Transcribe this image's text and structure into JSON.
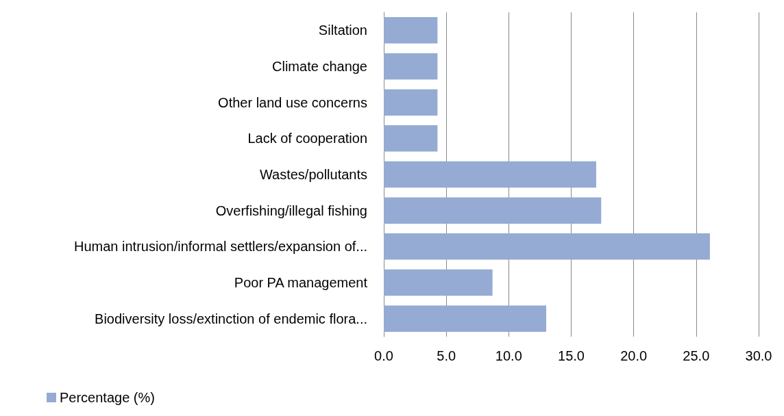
{
  "chart_data": {
    "type": "bar",
    "orientation": "horizontal",
    "categories": [
      "Siltation",
      "Climate change",
      "Other land use concerns",
      "Lack of cooperation",
      "Wastes/pollutants",
      "Overfishing/illegal fishing",
      "Human intrusion/informal settlers/expansion of...",
      "Poor PA management",
      "Biodiversity loss/extinction of endemic flora..."
    ],
    "series": [
      {
        "name": "Percentage (%)",
        "color": "#95abd3",
        "values": [
          4.3,
          4.3,
          4.3,
          4.3,
          17.0,
          17.4,
          26.1,
          8.7,
          13.0
        ]
      }
    ],
    "xlim": [
      0,
      30
    ],
    "xticks": [
      {
        "value": 0,
        "label": "0.0"
      },
      {
        "value": 5,
        "label": "5.0"
      },
      {
        "value": 10,
        "label": "10.0"
      },
      {
        "value": 15,
        "label": "15.0"
      },
      {
        "value": 20,
        "label": "20.0"
      },
      {
        "value": 25,
        "label": "25.0"
      },
      {
        "value": 30,
        "label": "30.0"
      }
    ],
    "grid": "x",
    "legend": "bottom left"
  }
}
